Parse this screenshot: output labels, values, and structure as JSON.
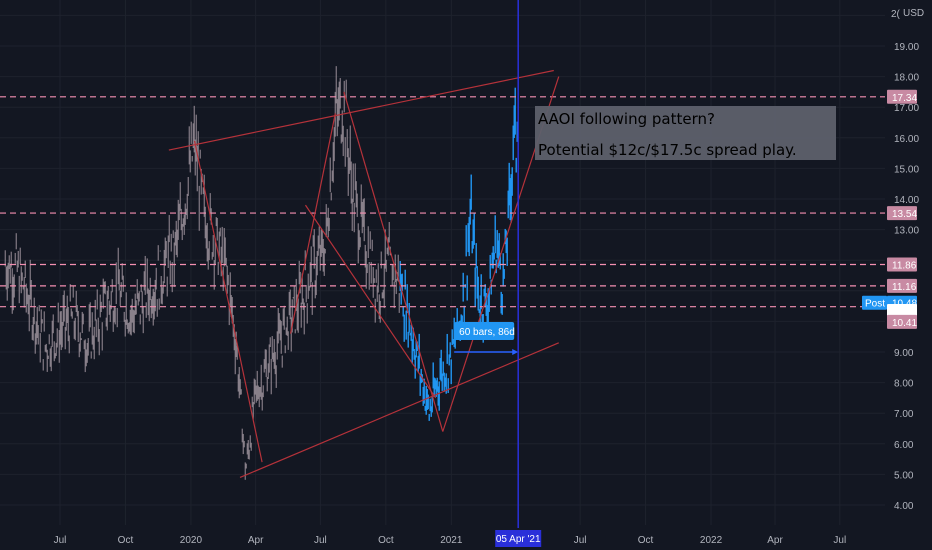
{
  "colors": {
    "background": "#131722",
    "grid": "#1e222d",
    "axis_text": "#b2b5be",
    "price_bar": "#9a8f99",
    "highlight_bar": "#2196f3",
    "trendline": "#b5323a",
    "level_line": "#f48fb1",
    "level_tag": "#c88aa3",
    "time_marker": "#2a2fd9",
    "time_tag": "#2a2fd9",
    "measure": "#2962ff",
    "note_bg": "#5d606b",
    "note_text": "#000000",
    "white_tag": "#ffffff"
  },
  "chart_data": {
    "type": "ohlc",
    "title": "",
    "currency": "USD",
    "ylim": [
      3.5,
      20
    ],
    "y_ticks": [
      4,
      5,
      6,
      7,
      8,
      9,
      13,
      14,
      15,
      16,
      17,
      18,
      19
    ],
    "y_tick_labels": [
      "4.00",
      "5.00",
      "6.00",
      "7.00",
      "8.00",
      "9.00",
      "13.00",
      "14.00",
      "15.00",
      "16.00",
      "17.00",
      "18.00",
      "19.00"
    ],
    "y_top_label": "2(",
    "x_ticks": [
      {
        "date": "2019-07-01",
        "label": "Jul"
      },
      {
        "date": "2019-10-01",
        "label": "Oct"
      },
      {
        "date": "2020-01-01",
        "label": "2020"
      },
      {
        "date": "2020-04-01",
        "label": "Apr"
      },
      {
        "date": "2020-07-01",
        "label": "Jul"
      },
      {
        "date": "2020-10-01",
        "label": "Oct"
      },
      {
        "date": "2021-01-01",
        "label": "2021"
      },
      {
        "date": "2021-07-01",
        "label": "Jul"
      },
      {
        "date": "2021-10-01",
        "label": "Oct"
      },
      {
        "date": "2022-01-01",
        "label": "2022"
      },
      {
        "date": "2022-04-01",
        "label": "Apr"
      },
      {
        "date": "2022-07-01",
        "label": "Jul"
      }
    ],
    "cursor": {
      "date": "2021-04-05",
      "label": "05 Apr '21"
    },
    "price_path": [
      [
        "2019-04-15",
        11.9
      ],
      [
        "2019-05-01",
        11.7
      ],
      [
        "2019-05-20",
        10.6
      ],
      [
        "2019-06-10",
        9.2
      ],
      [
        "2019-07-01",
        9.7
      ],
      [
        "2019-07-20",
        10.1
      ],
      [
        "2019-08-10",
        9.3
      ],
      [
        "2019-09-01",
        10.4
      ],
      [
        "2019-09-20",
        11.0
      ],
      [
        "2019-10-10",
        10.2
      ],
      [
        "2019-11-01",
        10.9
      ],
      [
        "2019-11-20",
        11.5
      ],
      [
        "2019-12-10",
        12.3
      ],
      [
        "2019-12-25",
        14.2
      ],
      [
        "2020-01-06",
        15.8
      ],
      [
        "2020-01-20",
        13.4
      ],
      [
        "2020-02-05",
        12.6
      ],
      [
        "2020-02-20",
        11.6
      ],
      [
        "2020-03-05",
        9.2
      ],
      [
        "2020-03-18",
        5.1
      ],
      [
        "2020-04-01",
        7.6
      ],
      [
        "2020-04-20",
        8.6
      ],
      [
        "2020-05-10",
        9.6
      ],
      [
        "2020-06-01",
        10.6
      ],
      [
        "2020-06-20",
        11.6
      ],
      [
        "2020-07-08",
        12.4
      ],
      [
        "2020-07-22",
        16.6
      ],
      [
        "2020-08-03",
        17.1
      ],
      [
        "2020-08-15",
        14.2
      ],
      [
        "2020-09-01",
        12.6
      ],
      [
        "2020-09-20",
        11.2
      ],
      [
        "2020-10-05",
        11.8
      ],
      [
        "2020-10-20",
        11.3
      ],
      [
        "2020-11-05",
        9.8
      ],
      [
        "2020-11-18",
        8.4
      ],
      [
        "2020-12-01",
        7.0
      ],
      [
        "2020-12-15",
        8.2
      ],
      [
        "2021-01-01",
        8.9
      ],
      [
        "2021-01-15",
        10.2
      ],
      [
        "2021-01-28",
        13.4
      ],
      [
        "2021-02-08",
        10.8
      ],
      [
        "2021-02-20",
        10.5
      ],
      [
        "2021-03-05",
        12.6
      ],
      [
        "2021-03-15",
        11.2
      ],
      [
        "2021-03-22",
        13.2
      ],
      [
        "2021-03-26",
        14.7
      ],
      [
        "2021-03-30",
        16.4
      ],
      [
        "2021-04-02",
        15.6
      ],
      [
        "2021-04-05",
        17.9
      ]
    ],
    "highlight_range": {
      "from": "2020-10-20",
      "to": "2021-04-05"
    },
    "price_levels": [
      {
        "value": 17.34,
        "label": "17.34"
      },
      {
        "value": 13.54,
        "label": "13.54"
      },
      {
        "value": 11.86,
        "label": "11.86"
      },
      {
        "value": 11.16,
        "label": "11.16"
      },
      {
        "value": 10.48,
        "label": "10.48"
      }
    ],
    "axis_tags": [
      {
        "value": 10.48,
        "label": "10.48",
        "prefix": "Post",
        "style": "blue"
      },
      {
        "value": 10.47,
        "label": "10.47",
        "style": "white"
      },
      {
        "value": 10.41,
        "label": "10.41",
        "style": "pink"
      }
    ],
    "trendlines": [
      {
        "from": [
          "2019-12-01",
          15.6
        ],
        "to": [
          "2021-05-25",
          18.2
        ]
      },
      {
        "from": [
          "2020-01-06",
          15.9
        ],
        "to": [
          "2020-04-10",
          5.4
        ]
      },
      {
        "from": [
          "2020-03-10",
          4.9
        ],
        "to": [
          "2021-06-01",
          9.3
        ]
      },
      {
        "from": [
          "2020-08-03",
          17.5
        ],
        "to": [
          "2020-12-20",
          6.4
        ]
      },
      {
        "from": [
          "2020-12-20",
          6.4
        ],
        "to": [
          "2021-06-01",
          18.0
        ]
      },
      {
        "from": [
          "2020-06-10",
          13.8
        ],
        "to": [
          "2020-12-10",
          7.5
        ]
      },
      {
        "from": [
          "2020-07-22",
          16.8
        ],
        "to": [
          "2020-05-20",
          9.6
        ]
      }
    ],
    "measure": {
      "label": "60 bars, 86d",
      "value": 9.0,
      "from": "2021-01-05",
      "to": "2021-04-05"
    },
    "annotation": {
      "lines": [
        "AAOI following pattern?",
        "Potential $12c/$17.5c spread play."
      ]
    }
  }
}
